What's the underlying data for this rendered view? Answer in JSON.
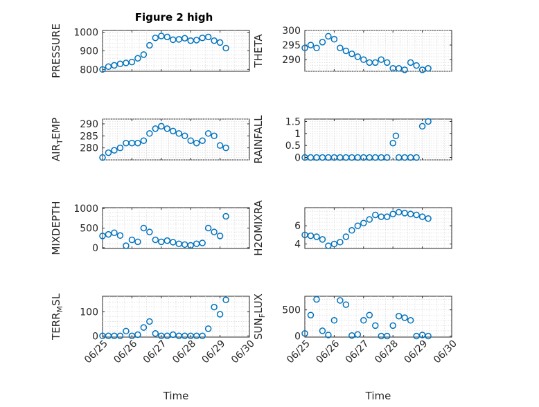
{
  "title": "Figure 2 high",
  "colors": {
    "marker": "#0072bd",
    "axes": "#262626",
    "grid": "#dcdcdc"
  },
  "chart_data": [
    {
      "type": "scatter",
      "ylabel": "PRESSURE",
      "ylim": [
        790,
        1010
      ],
      "yticks": [
        800,
        900,
        1000
      ],
      "xlim": [
        0,
        5
      ],
      "xtick_labels": [
        "06/25",
        "06/26",
        "06/27",
        "06/28",
        "06/29",
        "06/30"
      ],
      "grid": true,
      "x": [
        0,
        0.2,
        0.4,
        0.6,
        0.8,
        1.0,
        1.2,
        1.4,
        1.6,
        1.8,
        2.0,
        2.2,
        2.4,
        2.6,
        2.8,
        3.0,
        3.2,
        3.4,
        3.6,
        3.8,
        4.0,
        4.2
      ],
      "y": [
        800,
        815,
        822,
        830,
        835,
        840,
        860,
        880,
        930,
        970,
        980,
        975,
        960,
        962,
        968,
        955,
        958,
        970,
        975,
        955,
        945,
        915
      ]
    },
    {
      "type": "scatter",
      "ylabel": "THETA",
      "ylim": [
        286,
        300
      ],
      "yticks": [
        290,
        295,
        300
      ],
      "xlim": [
        0,
        5
      ],
      "xtick_labels": [
        "06/25",
        "06/26",
        "06/27",
        "06/28",
        "06/29",
        "06/30"
      ],
      "grid": true,
      "x": [
        0,
        0.2,
        0.4,
        0.6,
        0.8,
        1.0,
        1.2,
        1.4,
        1.6,
        1.8,
        2.0,
        2.2,
        2.4,
        2.6,
        2.8,
        3.0,
        3.2,
        3.4,
        3.6,
        3.8,
        4.0,
        4.2
      ],
      "y": [
        294,
        295,
        294,
        296,
        298,
        297,
        294,
        293,
        292,
        291,
        290,
        289,
        289,
        290,
        289,
        287,
        287,
        286.5,
        289,
        288,
        286.5,
        287
      ]
    },
    {
      "type": "scatter",
      "ylabel": "AIR_TEMP",
      "ylim": [
        275,
        292
      ],
      "yticks": [
        280,
        285,
        290
      ],
      "xlim": [
        0,
        5
      ],
      "xtick_labels": [
        "06/25",
        "06/26",
        "06/27",
        "06/28",
        "06/29",
        "06/30"
      ],
      "grid": true,
      "x": [
        0,
        0.2,
        0.4,
        0.6,
        0.8,
        1.0,
        1.2,
        1.4,
        1.6,
        1.8,
        2.0,
        2.2,
        2.4,
        2.6,
        2.8,
        3.0,
        3.2,
        3.4,
        3.6,
        3.8,
        4.0,
        4.2
      ],
      "y": [
        276,
        278,
        279,
        280,
        282,
        282,
        282,
        283,
        286,
        288,
        289,
        288,
        287,
        286,
        285,
        283,
        282,
        283,
        286,
        285,
        281,
        280
      ]
    },
    {
      "type": "scatter",
      "ylabel": "RAINFALL",
      "ylim": [
        -0.1,
        1.6
      ],
      "yticks": [
        0,
        0.5,
        1,
        1.5
      ],
      "xlim": [
        0,
        5
      ],
      "xtick_labels": [
        "06/25",
        "06/26",
        "06/27",
        "06/28",
        "06/29",
        "06/30"
      ],
      "grid": true,
      "x": [
        0,
        0.2,
        0.4,
        0.6,
        0.8,
        1.0,
        1.2,
        1.4,
        1.6,
        1.8,
        2.0,
        2.2,
        2.4,
        2.6,
        2.8,
        3.0,
        3.1,
        3.2,
        3.4,
        3.6,
        3.8,
        4.0,
        4.2
      ],
      "y": [
        0,
        0,
        0,
        0,
        0,
        0,
        0,
        0,
        0,
        0,
        0,
        0,
        0,
        0,
        0,
        0.6,
        0.9,
        0,
        0,
        0,
        0,
        1.3,
        1.5
      ]
    },
    {
      "type": "scatter",
      "ylabel": "MIXDEPTH",
      "ylim": [
        -20,
        1020
      ],
      "yticks": [
        0,
        500,
        1000
      ],
      "xlim": [
        0,
        5
      ],
      "xtick_labels": [
        "06/25",
        "06/26",
        "06/27",
        "06/28",
        "06/29",
        "06/30"
      ],
      "grid": true,
      "x": [
        0,
        0.2,
        0.4,
        0.6,
        0.8,
        1.0,
        1.2,
        1.4,
        1.6,
        1.8,
        2.0,
        2.2,
        2.4,
        2.6,
        2.8,
        3.0,
        3.2,
        3.4,
        3.6,
        3.8,
        4.0,
        4.2
      ],
      "y": [
        300,
        340,
        380,
        310,
        50,
        200,
        150,
        500,
        400,
        200,
        150,
        180,
        140,
        100,
        80,
        60,
        100,
        120,
        500,
        400,
        300,
        800
      ]
    },
    {
      "type": "scatter",
      "ylabel": "H2OMIXRA",
      "ylim": [
        3.5,
        8
      ],
      "yticks": [
        4,
        6
      ],
      "xlim": [
        0,
        5
      ],
      "xtick_labels": [
        "06/25",
        "06/26",
        "06/27",
        "06/28",
        "06/29",
        "06/30"
      ],
      "grid": true,
      "x": [
        0,
        0.2,
        0.4,
        0.6,
        0.8,
        1.0,
        1.2,
        1.4,
        1.6,
        1.8,
        2.0,
        2.2,
        2.4,
        2.6,
        2.8,
        3.0,
        3.2,
        3.4,
        3.6,
        3.8,
        4.0,
        4.2
      ],
      "y": [
        5,
        4.9,
        4.8,
        4.5,
        3.8,
        4.0,
        4.2,
        4.8,
        5.5,
        6.0,
        6.3,
        6.7,
        7.2,
        7.0,
        7.0,
        7.3,
        7.5,
        7.4,
        7.3,
        7.2,
        7.0,
        6.8
      ]
    },
    {
      "type": "scatter",
      "ylabel": "TERR_MSL",
      "ylim": [
        -5,
        165
      ],
      "yticks": [
        0,
        100
      ],
      "xlim": [
        0,
        5
      ],
      "xtick_labels": [
        "06/25",
        "06/26",
        "06/27",
        "06/28",
        "06/29",
        "06/30"
      ],
      "grid": true,
      "x": [
        0,
        0.2,
        0.4,
        0.6,
        0.8,
        1.0,
        1.2,
        1.4,
        1.6,
        1.8,
        2.0,
        2.2,
        2.4,
        2.6,
        2.8,
        3.0,
        3.2,
        3.4,
        3.6,
        3.8,
        4.0,
        4.2
      ],
      "y": [
        0,
        0,
        0,
        0,
        20,
        0,
        5,
        35,
        60,
        10,
        0,
        0,
        5,
        0,
        0,
        0,
        0,
        0,
        30,
        120,
        90,
        150
      ]
    },
    {
      "type": "scatter",
      "ylabel": "SUN_FLUX",
      "ylim": [
        -20,
        760
      ],
      "yticks": [
        0,
        500
      ],
      "xlim": [
        0,
        5
      ],
      "xtick_labels": [
        "06/25",
        "06/26",
        "06/27",
        "06/28",
        "06/29",
        "06/30"
      ],
      "grid": true,
      "x": [
        0,
        0.2,
        0.4,
        0.6,
        0.8,
        1.0,
        1.2,
        1.4,
        1.6,
        1.8,
        2.0,
        2.2,
        2.4,
        2.6,
        2.8,
        3.0,
        3.2,
        3.4,
        3.6,
        3.8,
        4.0,
        4.2
      ],
      "y": [
        50,
        400,
        700,
        100,
        20,
        300,
        680,
        600,
        10,
        30,
        300,
        400,
        200,
        0,
        0,
        200,
        380,
        350,
        300,
        0,
        20,
        0
      ]
    }
  ],
  "layout": {
    "xlabel": "Time",
    "ylabels": [
      {
        "main": "PRESSURE",
        "sub": ""
      },
      {
        "main": "THETA",
        "sub": ""
      },
      {
        "before": "AIR",
        "sub": "T",
        "after": "EMP"
      },
      {
        "main": "RAINFALL",
        "sub": ""
      },
      {
        "main": "MIXDEPTH",
        "sub": ""
      },
      {
        "main": "H2OMIXRA",
        "sub": ""
      },
      {
        "before": "TERR",
        "sub": "M",
        "after": "SL"
      },
      {
        "before": "SUN",
        "sub": "F",
        "after": "LUX"
      }
    ]
  }
}
